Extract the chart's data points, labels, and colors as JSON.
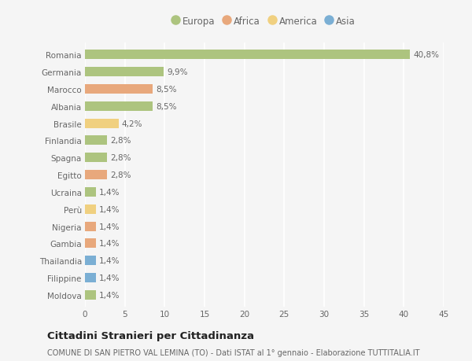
{
  "countries": [
    "Romania",
    "Germania",
    "Marocco",
    "Albania",
    "Brasile",
    "Finlandia",
    "Spagna",
    "Egitto",
    "Ucraina",
    "Perù",
    "Nigeria",
    "Gambia",
    "Thailandia",
    "Filippine",
    "Moldova"
  ],
  "values": [
    40.8,
    9.9,
    8.5,
    8.5,
    4.2,
    2.8,
    2.8,
    2.8,
    1.4,
    1.4,
    1.4,
    1.4,
    1.4,
    1.4,
    1.4
  ],
  "labels": [
    "40,8%",
    "9,9%",
    "8,5%",
    "8,5%",
    "4,2%",
    "2,8%",
    "2,8%",
    "2,8%",
    "1,4%",
    "1,4%",
    "1,4%",
    "1,4%",
    "1,4%",
    "1,4%",
    "1,4%"
  ],
  "continents": [
    "Europa",
    "Europa",
    "Africa",
    "Europa",
    "America",
    "Europa",
    "Europa",
    "Africa",
    "Europa",
    "America",
    "Africa",
    "Africa",
    "Asia",
    "Asia",
    "Europa"
  ],
  "continent_colors": {
    "Europa": "#adc47f",
    "Africa": "#e8a87c",
    "America": "#f0d080",
    "Asia": "#7bafd4"
  },
  "legend_order": [
    "Europa",
    "Africa",
    "America",
    "Asia"
  ],
  "bg_color": "#f5f5f5",
  "grid_color": "#ffffff",
  "title": "Cittadini Stranieri per Cittadinanza",
  "subtitle": "COMUNE DI SAN PIETRO VAL LEMINA (TO) - Dati ISTAT al 1° gennaio - Elaborazione TUTTITALIA.IT",
  "xlim": [
    0,
    45
  ],
  "xticks": [
    0,
    5,
    10,
    15,
    20,
    25,
    30,
    35,
    40,
    45
  ]
}
